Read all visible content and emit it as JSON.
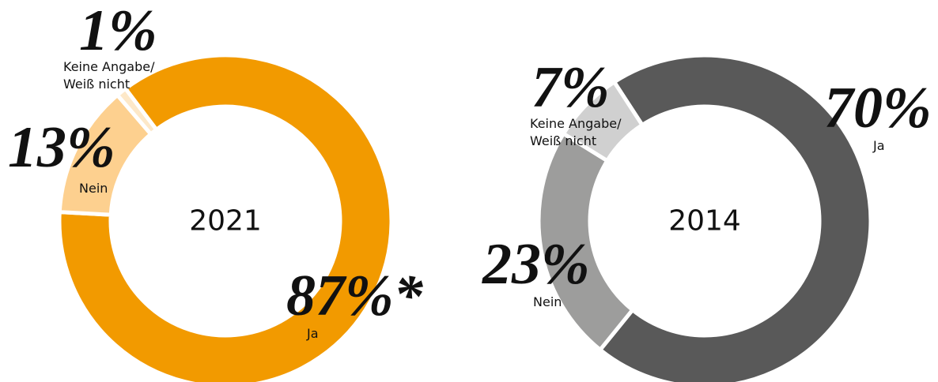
{
  "chart_data": [
    {
      "type": "donut",
      "center_label": "2021",
      "categories": [
        "Ja",
        "Nein",
        "Keine Angabe/ Weiß nicht"
      ],
      "values": [
        87,
        13,
        1
      ],
      "value_labels": [
        "87%*",
        "13%",
        "1%"
      ],
      "colors": [
        "#f29a00",
        "#fdd08f",
        "#fde8c8"
      ]
    },
    {
      "type": "donut",
      "center_label": "2014",
      "categories": [
        "Ja",
        "Nein",
        "Keine Angabe/ Weiß nicht"
      ],
      "values": [
        70,
        23,
        7
      ],
      "value_labels": [
        "70%",
        "23%",
        "7%"
      ],
      "colors": [
        "#595959",
        "#9d9d9c",
        "#d0d0d0"
      ]
    }
  ]
}
